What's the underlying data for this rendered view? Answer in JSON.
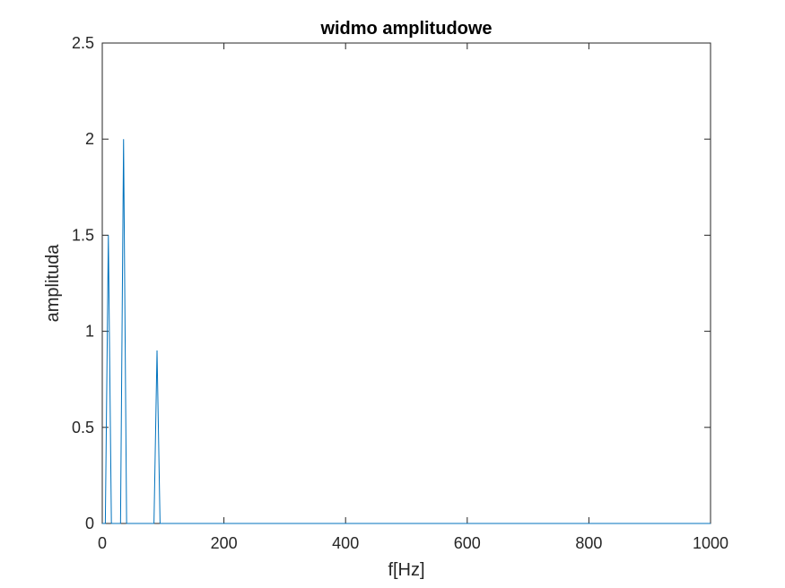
{
  "chart_data": {
    "type": "line",
    "title": "widmo amplitudowe",
    "xlabel": "f[Hz]",
    "ylabel": "amplituda",
    "xlim": [
      0,
      1000
    ],
    "ylim": [
      0,
      2.5
    ],
    "x_ticks": [
      0,
      200,
      400,
      600,
      800,
      1000
    ],
    "y_ticks": [
      0,
      0.5,
      1,
      1.5,
      2,
      2.5
    ],
    "x_tick_labels": [
      "0",
      "200",
      "400",
      "600",
      "800",
      "1000"
    ],
    "y_tick_labels": [
      "0",
      "0.5",
      "1",
      "1.5",
      "2",
      "2.5"
    ],
    "grid": false,
    "line_color": "#0072BD",
    "axis_color": "#262626",
    "series": [
      {
        "x": [
          0,
          5,
          10,
          15,
          30,
          35,
          40,
          85,
          90,
          95,
          1000
        ],
        "y": [
          0,
          0,
          1.5,
          0,
          0,
          2.0,
          0,
          0,
          0.9,
          0,
          0
        ]
      }
    ]
  }
}
